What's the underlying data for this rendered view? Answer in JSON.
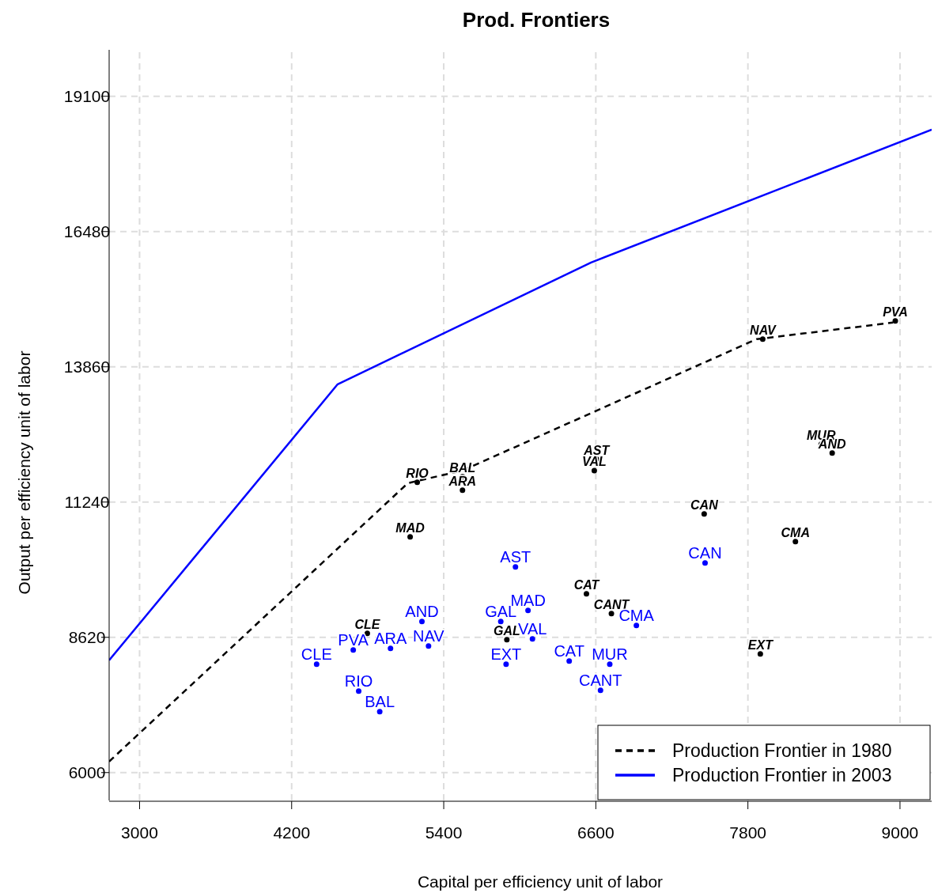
{
  "chart_data": {
    "type": "line",
    "title": "Prod. Frontiers",
    "xlabel": "Capital per efficiency unit of labor",
    "ylabel": "Output per efficiency unit of labor",
    "xlim": [
      2760,
      9250
    ],
    "ylim": [
      5460,
      20000
    ],
    "xticks": [
      3000,
      4200,
      5400,
      6600,
      7800,
      9000
    ],
    "yticks": [
      6000,
      8620,
      11240,
      13860,
      16480,
      19100
    ],
    "grid": true,
    "legend": "bottom right",
    "series": [
      {
        "name": "Production Frontier in 1980",
        "color": "#000000",
        "line_style": "dashed",
        "x": [
          2760,
          5117,
          5548,
          7868,
          8945
        ],
        "values": [
          6214,
          11607,
          11850,
          14395,
          14717
        ]
      },
      {
        "name": "Production Frontier in 2003",
        "color": "#0000ff",
        "line_style": "solid",
        "x": [
          2760,
          4563,
          6563,
          9250
        ],
        "values": [
          8175,
          13522,
          15881,
          18455
        ]
      },
      {
        "type": "scatter",
        "marker": "circle",
        "color": "#000000",
        "x": [
          5191,
          5548,
          5548,
          5135,
          4797,
          5898,
          6526,
          6723,
          6606,
          6588,
          7455,
          7917,
          8963,
          8378,
          8465,
          8175,
          7898
        ],
        "values": [
          11622,
          11730,
          11469,
          10565,
          8696,
          8574,
          9462,
          9079,
          12070,
          11850,
          11010,
          14395,
          14748,
          12358,
          12189,
          10473,
          8298
        ],
        "value_labels": [
          "RIO",
          "BAL",
          "ARA",
          "MAD",
          "CLE",
          "GAL",
          "CAT",
          "CANT",
          "AST",
          "VAL",
          "CAN",
          "NAV",
          "PVA",
          "MUR",
          "AND",
          "CMA",
          "EXT"
        ]
      },
      {
        "type": "scatter",
        "marker": "circle",
        "color": "#0000ff",
        "x": [
          4397,
          4686,
          4980,
          5228,
          5280,
          4729,
          4895,
          5966,
          6065,
          5850,
          6100,
          5892,
          6390,
          6710,
          6637,
          6920,
          7462
        ],
        "values": [
          8099,
          8375,
          8405,
          8926,
          8451,
          7578,
          7180,
          9983,
          9141,
          8926,
          8589,
          8099,
          8160,
          8099,
          7593,
          8850,
          10060
        ],
        "value_labels": [
          "CLE",
          "PVA",
          "ARA",
          "AND",
          "NAV",
          "RIO",
          "BAL",
          "AST",
          "MAD",
          "GAL",
          "VAL",
          "EXT",
          "CAT",
          "MUR",
          "CANT",
          "CMA",
          "CAN"
        ]
      }
    ]
  }
}
